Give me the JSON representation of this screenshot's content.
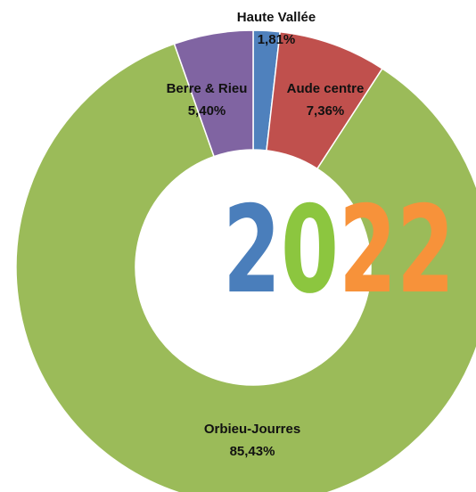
{
  "chart_data": {
    "type": "donut",
    "categories": [
      "Haute Vallée",
      "Aude centre",
      "Orbieu-Jourres",
      "Berre & Rieu"
    ],
    "values": [
      1.81,
      7.36,
      85.43,
      5.4
    ],
    "value_labels": [
      "1,81%",
      "7,36%",
      "85,43%",
      "5,40%"
    ],
    "colors": [
      "#4f81bd",
      "#c0504d",
      "#9bbb59",
      "#8064a2"
    ],
    "center_text": [
      "2",
      "0",
      "2",
      "2"
    ],
    "center_text_colors": [
      "#4a7ebb",
      "#8cc63f",
      "#f7923a",
      "#f7923a"
    ]
  }
}
